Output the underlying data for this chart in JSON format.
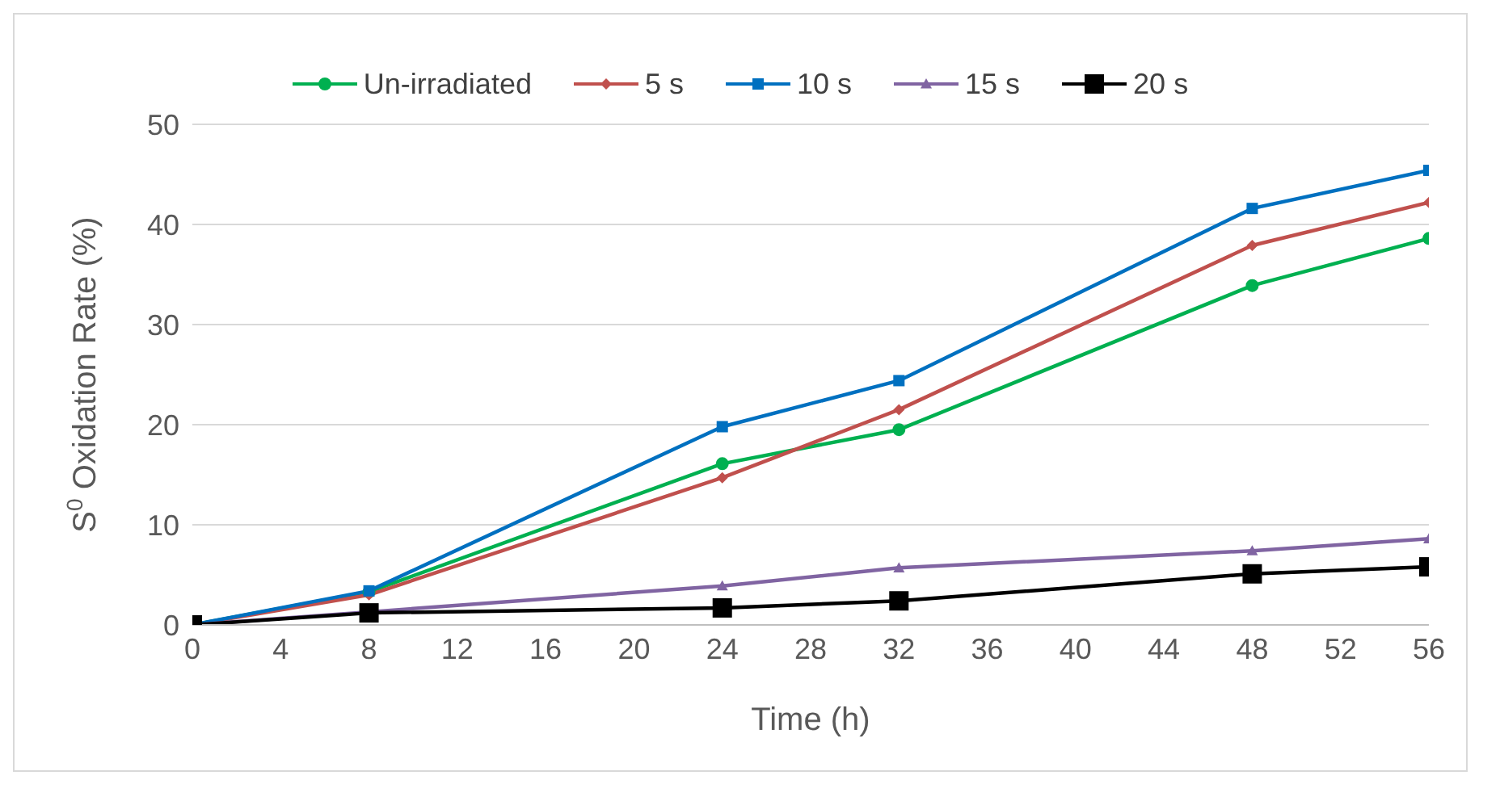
{
  "chart_data": {
    "type": "line",
    "xlabel": "Time (h)",
    "ylabel": "S$^{0}$ Oxidation Rate (%)",
    "x": [
      0,
      8,
      24,
      32,
      48,
      56
    ],
    "series": [
      {
        "name": "Un-irradiated",
        "color": "#00b050",
        "marker": "circle",
        "values": [
          0,
          3.3,
          16.1,
          19.5,
          33.9,
          38.6
        ]
      },
      {
        "name": "5 s",
        "color": "#c0504d",
        "marker": "diamond",
        "values": [
          0,
          3.0,
          14.7,
          21.5,
          37.9,
          42.2
        ]
      },
      {
        "name": "10 s",
        "color": "#0070c0",
        "marker": "square",
        "values": [
          0,
          3.4,
          19.8,
          24.4,
          41.6,
          45.4
        ]
      },
      {
        "name": "15 s",
        "color": "#8064a2",
        "marker": "triangle",
        "values": [
          0,
          1.3,
          3.9,
          5.7,
          7.4,
          8.6
        ]
      },
      {
        "name": "20 s",
        "color": "#000000",
        "marker": "square",
        "values": [
          0,
          1.2,
          1.7,
          2.4,
          5.1,
          5.8
        ]
      }
    ],
    "xlim": [
      0,
      56
    ],
    "xticks": [
      0,
      4,
      8,
      12,
      16,
      20,
      24,
      28,
      32,
      36,
      40,
      44,
      48,
      52,
      56
    ],
    "ylim": [
      0,
      50
    ],
    "yticks": [
      0,
      10,
      20,
      30,
      40,
      50
    ],
    "grid": "y",
    "legend": "top"
  }
}
